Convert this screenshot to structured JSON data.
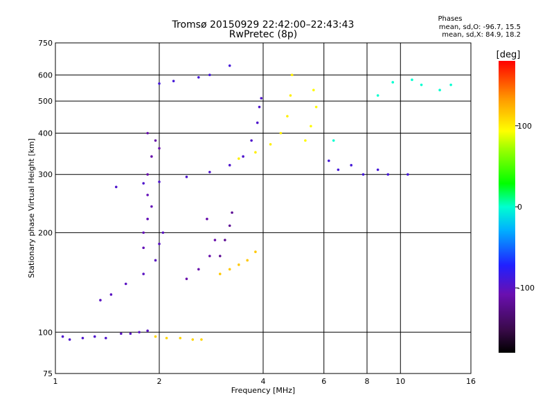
{
  "chart_data": {
    "type": "scatter",
    "title": "Tromsø 20150929 22:42:00–22:43:43",
    "subtitle": "RwPretec (8p)",
    "xlabel": "Frequency [MHz]",
    "ylabel": "Stationary phase Virtual Height [km]",
    "x_scale": "log",
    "y_scale": "log",
    "xlim": [
      1,
      16
    ],
    "ylim": [
      75,
      750
    ],
    "x_ticks": [
      1,
      2,
      4,
      6,
      8,
      10,
      16
    ],
    "x_tick_labels": [
      "1",
      "2",
      "4",
      "6",
      "8",
      "10",
      "16"
    ],
    "y_ticks": [
      75,
      100,
      200,
      300,
      400,
      500,
      600,
      750
    ],
    "y_tick_labels": [
      "75",
      "100",
      "200",
      "300",
      "400",
      "500",
      "600",
      "750"
    ],
    "grid": true,
    "phase_info": {
      "heading": "Phases",
      "line1": "mean, sd,O: -96.7, 15.5",
      "line2": "mean, sd,X: 84.9, 18.2"
    },
    "colorbar": {
      "label": "[deg]",
      "range": [
        -180,
        180
      ],
      "ticks": [
        100,
        0,
        -100
      ],
      "tick_labels": [
        "100",
        "0",
        "-100"
      ]
    },
    "clusters": [
      {
        "name": "e-layer-low",
        "phase": -95,
        "points": [
          [
            1.05,
            97
          ],
          [
            1.1,
            95
          ],
          [
            1.2,
            96
          ],
          [
            1.3,
            97
          ],
          [
            1.4,
            96
          ]
        ]
      },
      {
        "name": "e-layer-mid",
        "phase": -100,
        "points": [
          [
            1.55,
            99
          ],
          [
            1.65,
            99
          ],
          [
            1.75,
            100
          ],
          [
            1.85,
            101
          ]
        ]
      },
      {
        "name": "e-layer-x",
        "phase": 110,
        "points": [
          [
            1.95,
            97
          ],
          [
            2.1,
            96
          ],
          [
            2.3,
            96
          ],
          [
            2.5,
            95
          ],
          [
            2.65,
            95
          ]
        ]
      },
      {
        "name": "f1-cusp",
        "phase": -100,
        "points": [
          [
            1.35,
            125
          ],
          [
            1.45,
            130
          ],
          [
            1.6,
            140
          ],
          [
            1.8,
            150
          ],
          [
            1.95,
            165
          ],
          [
            2.0,
            185
          ],
          [
            2.05,
            200
          ]
        ]
      },
      {
        "name": "f1-column-a",
        "phase": -105,
        "points": [
          [
            1.8,
            200
          ],
          [
            1.85,
            220
          ],
          [
            1.9,
            240
          ],
          [
            1.85,
            260
          ],
          [
            1.8,
            180
          ]
        ]
      },
      {
        "name": "f1-column-b",
        "phase": -110,
        "points": [
          [
            2.4,
            145
          ],
          [
            2.6,
            155
          ],
          [
            2.8,
            170
          ],
          [
            2.9,
            190
          ],
          [
            2.75,
            220
          ]
        ]
      },
      {
        "name": "f1-column-c",
        "phase": -120,
        "points": [
          [
            3.0,
            170
          ],
          [
            3.1,
            190
          ],
          [
            3.2,
            210
          ],
          [
            3.25,
            230
          ]
        ]
      },
      {
        "name": "f1-x",
        "phase": 115,
        "points": [
          [
            3.0,
            150
          ],
          [
            3.2,
            155
          ],
          [
            3.4,
            160
          ],
          [
            3.6,
            165
          ],
          [
            3.8,
            175
          ]
        ]
      },
      {
        "name": "f2-o-trace",
        "phase": -95,
        "points": [
          [
            1.5,
            275
          ],
          [
            1.8,
            282
          ],
          [
            2.0,
            285
          ],
          [
            2.4,
            295
          ],
          [
            2.8,
            305
          ],
          [
            3.2,
            320
          ],
          [
            3.5,
            340
          ],
          [
            3.7,
            380
          ],
          [
            3.85,
            430
          ],
          [
            3.9,
            480
          ],
          [
            3.95,
            510
          ]
        ]
      },
      {
        "name": "f2-o-column",
        "phase": -110,
        "points": [
          [
            1.85,
            300
          ],
          [
            1.9,
            340
          ],
          [
            1.95,
            380
          ],
          [
            2.0,
            360
          ],
          [
            1.85,
            400
          ]
        ]
      },
      {
        "name": "f2-x-trace",
        "phase": 100,
        "points": [
          [
            3.4,
            335
          ],
          [
            3.8,
            350
          ],
          [
            4.2,
            370
          ],
          [
            4.5,
            400
          ],
          [
            4.7,
            450
          ],
          [
            4.8,
            520
          ],
          [
            4.85,
            600
          ]
        ]
      },
      {
        "name": "f2-x-column",
        "phase": 95,
        "points": [
          [
            5.3,
            380
          ],
          [
            5.5,
            420
          ],
          [
            5.7,
            480
          ],
          [
            5.6,
            540
          ]
        ]
      },
      {
        "name": "f2-upper",
        "phase": -90,
        "points": [
          [
            2.0,
            565
          ],
          [
            2.2,
            575
          ],
          [
            2.6,
            590
          ],
          [
            2.8,
            600
          ],
          [
            3.2,
            640
          ]
        ]
      },
      {
        "name": "oblique",
        "phase": -90,
        "points": [
          [
            6.2,
            330
          ],
          [
            6.6,
            310
          ],
          [
            7.2,
            320
          ],
          [
            7.8,
            300
          ],
          [
            8.6,
            310
          ],
          [
            9.2,
            300
          ],
          [
            10.5,
            300
          ]
        ]
      },
      {
        "name": "scattered",
        "phase": 0,
        "points": [
          [
            9.5,
            570
          ],
          [
            10.8,
            580
          ],
          [
            11.5,
            560
          ],
          [
            13.0,
            540
          ],
          [
            14.0,
            560
          ],
          [
            8.6,
            520
          ],
          [
            6.4,
            380
          ]
        ]
      }
    ]
  }
}
